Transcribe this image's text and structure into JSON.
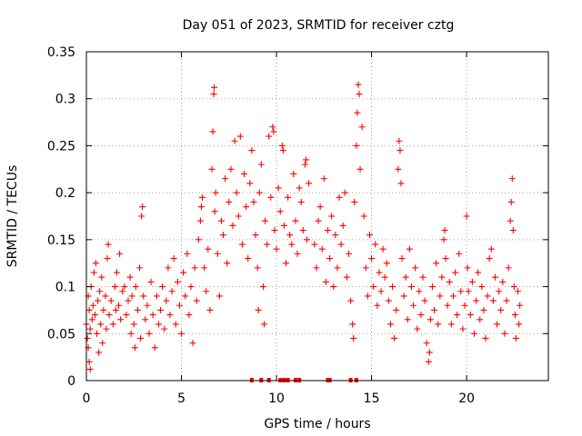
{
  "chart_data": {
    "type": "scatter",
    "title": "Day 051 of 2023, SRMTID for receiver cztg",
    "xlabel": "GPS time / hours",
    "ylabel": "SRMTID / TECUs",
    "xlim": [
      0,
      24.3
    ],
    "ylim": [
      0,
      0.35
    ],
    "x_ticks": [
      0,
      5,
      10,
      15,
      20
    ],
    "y_ticks": [
      0,
      0.05,
      0.1,
      0.15,
      0.2,
      0.25,
      0.3,
      0.35
    ],
    "y_tick_labels": [
      "0",
      "0.05",
      "0.1",
      "0.15",
      "0.2",
      "0.25",
      "0.3",
      "0.35"
    ],
    "grid": true,
    "marker": "+",
    "color": "#ff0000",
    "zero_markers_x": [
      8.7,
      9.2,
      9.6,
      10.2,
      10.4,
      10.6,
      11.0,
      11.2,
      12.7,
      12.8,
      13.9,
      14.2
    ],
    "series": [
      {
        "name": "SRMTID",
        "points": [
          [
            0.0,
            0.06
          ],
          [
            0.05,
            0.045
          ],
          [
            0.1,
            0.09
          ],
          [
            0.1,
            0.035
          ],
          [
            0.15,
            0.02
          ],
          [
            0.15,
            0.075
          ],
          [
            0.2,
            0.012
          ],
          [
            0.2,
            0.055
          ],
          [
            0.25,
            0.1
          ],
          [
            0.3,
            0.065
          ],
          [
            0.35,
            0.08
          ],
          [
            0.4,
            0.115
          ],
          [
            0.45,
            0.07
          ],
          [
            0.5,
            0.125
          ],
          [
            0.55,
            0.05
          ],
          [
            0.6,
            0.085
          ],
          [
            0.65,
            0.03
          ],
          [
            0.7,
            0.095
          ],
          [
            0.75,
            0.06
          ],
          [
            0.8,
            0.11
          ],
          [
            0.85,
            0.04
          ],
          [
            0.9,
            0.075
          ],
          [
            1.0,
            0.09
          ],
          [
            1.05,
            0.055
          ],
          [
            1.1,
            0.13
          ],
          [
            1.15,
            0.145
          ],
          [
            1.2,
            0.07
          ],
          [
            1.3,
            0.085
          ],
          [
            1.4,
            0.06
          ],
          [
            1.5,
            0.1
          ],
          [
            1.55,
            0.075
          ],
          [
            1.6,
            0.115
          ],
          [
            1.7,
            0.08
          ],
          [
            1.75,
            0.135
          ],
          [
            1.8,
            0.065
          ],
          [
            1.9,
            0.095
          ],
          [
            2.0,
            0.1
          ],
          [
            2.1,
            0.07
          ],
          [
            2.2,
            0.085
          ],
          [
            2.3,
            0.11
          ],
          [
            2.35,
            0.05
          ],
          [
            2.4,
            0.09
          ],
          [
            2.5,
            0.06
          ],
          [
            2.55,
            0.035
          ],
          [
            2.6,
            0.1
          ],
          [
            2.7,
            0.075
          ],
          [
            2.8,
            0.12
          ],
          [
            2.85,
            0.045
          ],
          [
            2.9,
            0.175
          ],
          [
            2.95,
            0.185
          ],
          [
            3.0,
            0.09
          ],
          [
            3.1,
            0.065
          ],
          [
            3.2,
            0.08
          ],
          [
            3.3,
            0.05
          ],
          [
            3.4,
            0.105
          ],
          [
            3.5,
            0.07
          ],
          [
            3.6,
            0.035
          ],
          [
            3.7,
            0.09
          ],
          [
            3.8,
            0.06
          ],
          [
            3.9,
            0.075
          ],
          [
            4.0,
            0.1
          ],
          [
            4.1,
            0.055
          ],
          [
            4.2,
            0.085
          ],
          [
            4.3,
            0.12
          ],
          [
            4.4,
            0.07
          ],
          [
            4.5,
            0.095
          ],
          [
            4.6,
            0.13
          ],
          [
            4.7,
            0.06
          ],
          [
            4.8,
            0.105
          ],
          [
            4.9,
            0.08
          ],
          [
            5.0,
            0.05
          ],
          [
            5.1,
            0.115
          ],
          [
            5.2,
            0.09
          ],
          [
            5.3,
            0.135
          ],
          [
            5.4,
            0.07
          ],
          [
            5.5,
            0.1
          ],
          [
            5.6,
            0.04
          ],
          [
            5.7,
            0.12
          ],
          [
            5.8,
            0.085
          ],
          [
            5.9,
            0.15
          ],
          [
            6.0,
            0.17
          ],
          [
            6.05,
            0.185
          ],
          [
            6.1,
            0.195
          ],
          [
            6.2,
            0.12
          ],
          [
            6.3,
            0.095
          ],
          [
            6.4,
            0.14
          ],
          [
            6.5,
            0.075
          ],
          [
            6.6,
            0.225
          ],
          [
            6.65,
            0.265
          ],
          [
            6.7,
            0.305
          ],
          [
            6.72,
            0.312
          ],
          [
            6.75,
            0.18
          ],
          [
            6.8,
            0.2
          ],
          [
            6.9,
            0.135
          ],
          [
            7.0,
            0.09
          ],
          [
            7.1,
            0.17
          ],
          [
            7.2,
            0.155
          ],
          [
            7.3,
            0.215
          ],
          [
            7.4,
            0.125
          ],
          [
            7.5,
            0.19
          ],
          [
            7.6,
            0.225
          ],
          [
            7.7,
            0.165
          ],
          [
            7.8,
            0.255
          ],
          [
            7.9,
            0.2
          ],
          [
            8.0,
            0.175
          ],
          [
            8.1,
            0.26
          ],
          [
            8.2,
            0.145
          ],
          [
            8.3,
            0.22
          ],
          [
            8.4,
            0.185
          ],
          [
            8.5,
            0.13
          ],
          [
            8.6,
            0.21
          ],
          [
            8.7,
            0.245
          ],
          [
            8.8,
            0.19
          ],
          [
            8.9,
            0.155
          ],
          [
            9.0,
            0.12
          ],
          [
            9.05,
            0.075
          ],
          [
            9.1,
            0.2
          ],
          [
            9.2,
            0.23
          ],
          [
            9.3,
            0.1
          ],
          [
            9.35,
            0.06
          ],
          [
            9.4,
            0.17
          ],
          [
            9.5,
            0.145
          ],
          [
            9.6,
            0.26
          ],
          [
            9.7,
            0.195
          ],
          [
            9.8,
            0.27
          ],
          [
            9.85,
            0.265
          ],
          [
            9.9,
            0.16
          ],
          [
            10.0,
            0.14
          ],
          [
            10.1,
            0.205
          ],
          [
            10.2,
            0.18
          ],
          [
            10.3,
            0.25
          ],
          [
            10.35,
            0.245
          ],
          [
            10.4,
            0.165
          ],
          [
            10.5,
            0.125
          ],
          [
            10.6,
            0.195
          ],
          [
            10.7,
            0.155
          ],
          [
            10.8,
            0.145
          ],
          [
            10.9,
            0.22
          ],
          [
            11.0,
            0.17
          ],
          [
            11.1,
            0.135
          ],
          [
            11.2,
            0.205
          ],
          [
            11.3,
            0.19
          ],
          [
            11.4,
            0.16
          ],
          [
            11.5,
            0.23
          ],
          [
            11.55,
            0.235
          ],
          [
            11.6,
            0.15
          ],
          [
            11.7,
            0.21
          ],
          [
            12.0,
            0.145
          ],
          [
            12.1,
            0.12
          ],
          [
            12.2,
            0.17
          ],
          [
            12.3,
            0.185
          ],
          [
            12.4,
            0.14
          ],
          [
            12.5,
            0.215
          ],
          [
            12.6,
            0.105
          ],
          [
            12.7,
            0.16
          ],
          [
            12.8,
            0.13
          ],
          [
            12.9,
            0.175
          ],
          [
            13.0,
            0.1
          ],
          [
            13.1,
            0.155
          ],
          [
            13.2,
            0.12
          ],
          [
            13.3,
            0.195
          ],
          [
            13.4,
            0.145
          ],
          [
            13.5,
            0.165
          ],
          [
            13.6,
            0.2
          ],
          [
            13.7,
            0.11
          ],
          [
            13.8,
            0.135
          ],
          [
            13.9,
            0.085
          ],
          [
            14.0,
            0.06
          ],
          [
            14.05,
            0.045
          ],
          [
            14.1,
            0.19
          ],
          [
            14.2,
            0.25
          ],
          [
            14.25,
            0.285
          ],
          [
            14.3,
            0.315
          ],
          [
            14.35,
            0.305
          ],
          [
            14.4,
            0.225
          ],
          [
            14.5,
            0.27
          ],
          [
            14.6,
            0.175
          ],
          [
            14.7,
            0.12
          ],
          [
            14.8,
            0.09
          ],
          [
            14.9,
            0.155
          ],
          [
            15.0,
            0.13
          ],
          [
            15.1,
            0.1
          ],
          [
            15.2,
            0.145
          ],
          [
            15.3,
            0.08
          ],
          [
            15.4,
            0.115
          ],
          [
            15.5,
            0.095
          ],
          [
            15.6,
            0.14
          ],
          [
            15.7,
            0.11
          ],
          [
            15.8,
            0.125
          ],
          [
            15.9,
            0.085
          ],
          [
            16.0,
            0.06
          ],
          [
            16.1,
            0.1
          ],
          [
            16.2,
            0.045
          ],
          [
            16.3,
            0.075
          ],
          [
            16.4,
            0.225
          ],
          [
            16.45,
            0.255
          ],
          [
            16.5,
            0.245
          ],
          [
            16.55,
            0.21
          ],
          [
            16.6,
            0.13
          ],
          [
            16.7,
            0.09
          ],
          [
            16.8,
            0.11
          ],
          [
            16.9,
            0.065
          ],
          [
            17.0,
            0.14
          ],
          [
            17.1,
            0.1
          ],
          [
            17.2,
            0.08
          ],
          [
            17.3,
            0.12
          ],
          [
            17.4,
            0.055
          ],
          [
            17.5,
            0.095
          ],
          [
            17.6,
            0.07
          ],
          [
            17.7,
            0.11
          ],
          [
            17.8,
            0.085
          ],
          [
            17.9,
            0.04
          ],
          [
            18.0,
            0.02
          ],
          [
            18.05,
            0.03
          ],
          [
            18.1,
            0.065
          ],
          [
            18.2,
            0.1
          ],
          [
            18.3,
            0.075
          ],
          [
            18.4,
            0.125
          ],
          [
            18.5,
            0.06
          ],
          [
            18.6,
            0.09
          ],
          [
            18.7,
            0.11
          ],
          [
            18.8,
            0.15
          ],
          [
            18.85,
            0.16
          ],
          [
            18.9,
            0.13
          ],
          [
            19.0,
            0.08
          ],
          [
            19.1,
            0.105
          ],
          [
            19.2,
            0.06
          ],
          [
            19.3,
            0.09
          ],
          [
            19.4,
            0.115
          ],
          [
            19.5,
            0.07
          ],
          [
            19.6,
            0.135
          ],
          [
            19.7,
            0.095
          ],
          [
            19.8,
            0.055
          ],
          [
            19.9,
            0.08
          ],
          [
            20.0,
            0.175
          ],
          [
            20.05,
            0.12
          ],
          [
            20.1,
            0.095
          ],
          [
            20.2,
            0.07
          ],
          [
            20.3,
            0.105
          ],
          [
            20.4,
            0.05
          ],
          [
            20.5,
            0.085
          ],
          [
            20.6,
            0.115
          ],
          [
            20.7,
            0.065
          ],
          [
            20.8,
            0.1
          ],
          [
            20.9,
            0.075
          ],
          [
            21.0,
            0.045
          ],
          [
            21.1,
            0.09
          ],
          [
            21.2,
            0.13
          ],
          [
            21.3,
            0.14
          ],
          [
            21.4,
            0.085
          ],
          [
            21.5,
            0.11
          ],
          [
            21.6,
            0.06
          ],
          [
            21.7,
            0.095
          ],
          [
            21.8,
            0.075
          ],
          [
            21.9,
            0.105
          ],
          [
            22.0,
            0.05
          ],
          [
            22.1,
            0.085
          ],
          [
            22.2,
            0.12
          ],
          [
            22.3,
            0.17
          ],
          [
            22.35,
            0.19
          ],
          [
            22.4,
            0.215
          ],
          [
            22.45,
            0.16
          ],
          [
            22.5,
            0.1
          ],
          [
            22.55,
            0.07
          ],
          [
            22.6,
            0.045
          ],
          [
            22.7,
            0.095
          ],
          [
            22.75,
            0.06
          ],
          [
            22.8,
            0.08
          ]
        ]
      }
    ]
  }
}
